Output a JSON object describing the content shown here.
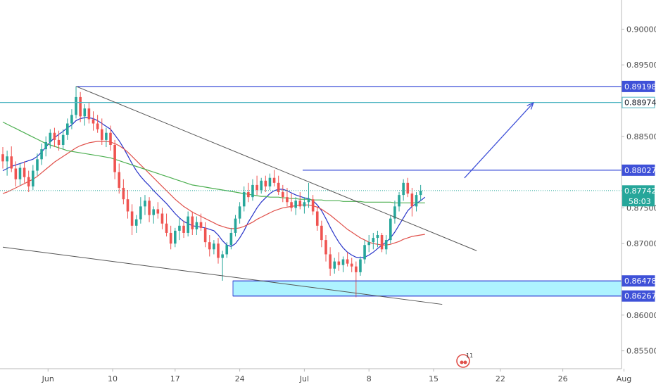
{
  "chart_data": {
    "type": "candlestick",
    "instrument_note": "",
    "x_axis": {
      "labels": [
        "Jun",
        "10",
        "17",
        "24",
        "Jul",
        "8",
        "15",
        "22",
        "26",
        "Aug"
      ]
    },
    "y_axis": {
      "ylim": [
        0.8525,
        0.9025
      ],
      "ticks": [
        "0.90000",
        "0.89500",
        "0.88500",
        "0.87500",
        "0.87000",
        "0.86000",
        "0.85500"
      ]
    },
    "levels": [
      {
        "name": "resistance-high",
        "value": "0.89198",
        "num": 0.89198,
        "color": "#3f51d8",
        "label_bg": "#3f51d8"
      },
      {
        "name": "resistance-target",
        "value": "0.88974",
        "num": 0.88974,
        "color": "#4fb6c2",
        "label_bg": "#ffffff"
      },
      {
        "name": "resistance-mid",
        "value": "0.88027",
        "num": 0.88027,
        "color": "#3f51d8",
        "label_bg": "#3f51d8"
      },
      {
        "name": "support-top",
        "value": "0.86478",
        "num": 0.86478,
        "color": "#3f51d8",
        "label_bg": "#3f51d8"
      },
      {
        "name": "support-bottom",
        "value": "0.86267",
        "num": 0.86267,
        "color": "#3f51d8",
        "label_bg": "#3f51d8"
      }
    ],
    "current_price": {
      "value": "0.87742",
      "num": 0.87742,
      "countdown": "58:03",
      "color": "#26a69a"
    },
    "support_zone": {
      "top": 0.86478,
      "bottom": 0.86267,
      "fill": "#aef3ff"
    },
    "candles_ohlc": [
      [
        0.8825,
        0.8835,
        0.8805,
        0.8815
      ],
      [
        0.8815,
        0.883,
        0.8795,
        0.8822
      ],
      [
        0.8822,
        0.8836,
        0.88,
        0.8805
      ],
      [
        0.8805,
        0.8815,
        0.878,
        0.879
      ],
      [
        0.879,
        0.8812,
        0.8782,
        0.8806
      ],
      [
        0.8806,
        0.8815,
        0.8785,
        0.8793
      ],
      [
        0.8793,
        0.8802,
        0.8772,
        0.878
      ],
      [
        0.878,
        0.881,
        0.8775,
        0.8802
      ],
      [
        0.8802,
        0.8826,
        0.8795,
        0.8818
      ],
      [
        0.8818,
        0.884,
        0.881,
        0.8832
      ],
      [
        0.8832,
        0.885,
        0.8822,
        0.8842
      ],
      [
        0.8842,
        0.886,
        0.8833,
        0.8855
      ],
      [
        0.8855,
        0.8862,
        0.8835,
        0.8845
      ],
      [
        0.8845,
        0.8858,
        0.883,
        0.8838
      ],
      [
        0.8838,
        0.886,
        0.8832,
        0.8852
      ],
      [
        0.8852,
        0.8875,
        0.8845,
        0.8868
      ],
      [
        0.8868,
        0.8888,
        0.886,
        0.888
      ],
      [
        0.888,
        0.892,
        0.8875,
        0.8905
      ],
      [
        0.8905,
        0.8912,
        0.887,
        0.8878
      ],
      [
        0.8878,
        0.8895,
        0.8865,
        0.8889
      ],
      [
        0.8889,
        0.8898,
        0.8868,
        0.8874
      ],
      [
        0.8874,
        0.8885,
        0.8858,
        0.8868
      ],
      [
        0.8868,
        0.888,
        0.8855,
        0.886
      ],
      [
        0.886,
        0.8875,
        0.8838,
        0.8845
      ],
      [
        0.8845,
        0.8862,
        0.8835,
        0.8855
      ],
      [
        0.8855,
        0.8865,
        0.883,
        0.8838
      ],
      [
        0.8838,
        0.8845,
        0.879,
        0.88
      ],
      [
        0.88,
        0.8812,
        0.877,
        0.8778
      ],
      [
        0.8778,
        0.879,
        0.8755,
        0.8762
      ],
      [
        0.8762,
        0.8775,
        0.8735,
        0.8745
      ],
      [
        0.8745,
        0.8755,
        0.8712,
        0.8725
      ],
      [
        0.8725,
        0.874,
        0.8715,
        0.8734
      ],
      [
        0.8734,
        0.8765,
        0.8728,
        0.8752
      ],
      [
        0.8752,
        0.8768,
        0.874,
        0.876
      ],
      [
        0.876,
        0.8765,
        0.873,
        0.874
      ],
      [
        0.874,
        0.8752,
        0.8728,
        0.8748
      ],
      [
        0.8748,
        0.8758,
        0.8735,
        0.8742
      ],
      [
        0.8742,
        0.875,
        0.872,
        0.8728
      ],
      [
        0.8728,
        0.8742,
        0.871,
        0.8715
      ],
      [
        0.8715,
        0.8725,
        0.8692,
        0.87
      ],
      [
        0.87,
        0.8722,
        0.8695,
        0.8718
      ],
      [
        0.8718,
        0.8735,
        0.8705,
        0.8725
      ],
      [
        0.8725,
        0.8732,
        0.8708,
        0.8715
      ],
      [
        0.8715,
        0.8745,
        0.871,
        0.8738
      ],
      [
        0.8738,
        0.8745,
        0.8712,
        0.872
      ],
      [
        0.872,
        0.8738,
        0.8712,
        0.873
      ],
      [
        0.873,
        0.8742,
        0.8718,
        0.8722
      ],
      [
        0.8722,
        0.873,
        0.8695,
        0.8702
      ],
      [
        0.8702,
        0.8712,
        0.8682,
        0.8692
      ],
      [
        0.8692,
        0.8705,
        0.8685,
        0.87
      ],
      [
        0.87,
        0.8708,
        0.8672,
        0.868
      ],
      [
        0.868,
        0.869,
        0.8648,
        0.8685
      ],
      [
        0.8685,
        0.8702,
        0.868,
        0.8698
      ],
      [
        0.8698,
        0.8722,
        0.8692,
        0.8715
      ],
      [
        0.8715,
        0.874,
        0.871,
        0.8735
      ],
      [
        0.8735,
        0.8758,
        0.8728,
        0.8752
      ],
      [
        0.8752,
        0.878,
        0.8745,
        0.8772
      ],
      [
        0.8772,
        0.8785,
        0.8758,
        0.8765
      ],
      [
        0.8765,
        0.879,
        0.876,
        0.8782
      ],
      [
        0.8782,
        0.8795,
        0.8768,
        0.8775
      ],
      [
        0.8775,
        0.8792,
        0.877,
        0.8788
      ],
      [
        0.8788,
        0.8795,
        0.8772,
        0.878
      ],
      [
        0.878,
        0.8798,
        0.8775,
        0.8792
      ],
      [
        0.8792,
        0.8803,
        0.878,
        0.8785
      ],
      [
        0.8785,
        0.8795,
        0.8768,
        0.8772
      ],
      [
        0.8772,
        0.8782,
        0.8758,
        0.8765
      ],
      [
        0.8765,
        0.8778,
        0.8752,
        0.8758
      ],
      [
        0.8758,
        0.877,
        0.8745,
        0.875
      ],
      [
        0.875,
        0.8765,
        0.874,
        0.876
      ],
      [
        0.876,
        0.8772,
        0.8748,
        0.8752
      ],
      [
        0.8752,
        0.8765,
        0.8742,
        0.8758
      ],
      [
        0.8758,
        0.8785,
        0.875,
        0.8762
      ],
      [
        0.8762,
        0.8768,
        0.874,
        0.8745
      ],
      [
        0.8745,
        0.8752,
        0.8718,
        0.8725
      ],
      [
        0.8725,
        0.8732,
        0.8695,
        0.8705
      ],
      [
        0.8705,
        0.8712,
        0.8675,
        0.8685
      ],
      [
        0.8685,
        0.8695,
        0.8655,
        0.8665
      ],
      [
        0.8665,
        0.868,
        0.8658,
        0.8675
      ],
      [
        0.8675,
        0.8688,
        0.8662,
        0.867
      ],
      [
        0.867,
        0.8682,
        0.866,
        0.8678
      ],
      [
        0.8678,
        0.8688,
        0.8668,
        0.8672
      ],
      [
        0.8672,
        0.868,
        0.866,
        0.8668
      ],
      [
        0.8668,
        0.8675,
        0.8625,
        0.866
      ],
      [
        0.866,
        0.8682,
        0.8655,
        0.8678
      ],
      [
        0.8678,
        0.8705,
        0.8672,
        0.8698
      ],
      [
        0.8698,
        0.8712,
        0.8688,
        0.8702
      ],
      [
        0.8702,
        0.8715,
        0.8692,
        0.8708
      ],
      [
        0.8708,
        0.8718,
        0.8695,
        0.8712
      ],
      [
        0.8712,
        0.8715,
        0.8688,
        0.8692
      ],
      [
        0.8692,
        0.8712,
        0.8685,
        0.8705
      ],
      [
        0.8705,
        0.874,
        0.87,
        0.8735
      ],
      [
        0.8735,
        0.876,
        0.8728,
        0.8752
      ],
      [
        0.8752,
        0.8772,
        0.8745,
        0.8768
      ],
      [
        0.8768,
        0.879,
        0.876,
        0.8785
      ],
      [
        0.8785,
        0.8792,
        0.8765,
        0.877
      ],
      [
        0.877,
        0.8778,
        0.8738,
        0.8752
      ],
      [
        0.8752,
        0.8772,
        0.8745,
        0.8768
      ],
      [
        0.8768,
        0.8782,
        0.876,
        0.8774
      ]
    ],
    "moving_averages": [
      {
        "name": "",
        "color": "#2632c8",
        "values": [
          0.8802,
          0.8805,
          0.8808,
          0.881,
          0.8812,
          0.8814,
          0.8816,
          0.8818,
          0.8822,
          0.8828,
          0.8835,
          0.8842,
          0.8848,
          0.8853,
          0.8857,
          0.8862,
          0.8866,
          0.8872,
          0.8875,
          0.8876,
          0.8876,
          0.8875,
          0.8872,
          0.8868,
          0.8864,
          0.886,
          0.8852,
          0.8844,
          0.8834,
          0.8823,
          0.8812,
          0.8802,
          0.8794,
          0.8787,
          0.8781,
          0.8774,
          0.8768,
          0.8762,
          0.8756,
          0.8749,
          0.8742,
          0.8736,
          0.8731,
          0.8728,
          0.8725,
          0.8724,
          0.8723,
          0.8722,
          0.872,
          0.8718,
          0.8712,
          0.8704,
          0.8698,
          0.8696,
          0.87,
          0.8708,
          0.8718,
          0.873,
          0.874,
          0.875,
          0.8758,
          0.8764,
          0.877,
          0.8774,
          0.8776,
          0.8776,
          0.8774,
          0.8771,
          0.8768,
          0.8766,
          0.8764,
          0.8763,
          0.876,
          0.8754,
          0.8746,
          0.8735,
          0.8723,
          0.8712,
          0.8702,
          0.8694,
          0.8688,
          0.8684,
          0.8681,
          0.868,
          0.8681,
          0.8684,
          0.8688,
          0.8693,
          0.8698,
          0.8702,
          0.8708,
          0.8716,
          0.8726,
          0.8736,
          0.8746,
          0.8752,
          0.8756,
          0.876,
          0.8765
        ]
      },
      {
        "name": "",
        "color": "#e0504a",
        "values": [
          0.877,
          0.8772,
          0.8775,
          0.8778,
          0.8781,
          0.8784,
          0.8787,
          0.879,
          0.8794,
          0.8799,
          0.8804,
          0.8809,
          0.8814,
          0.8818,
          0.8822,
          0.8826,
          0.883,
          0.8834,
          0.8837,
          0.8839,
          0.8841,
          0.8842,
          0.8843,
          0.8843,
          0.8843,
          0.8842,
          0.884,
          0.8837,
          0.8833,
          0.8828,
          0.8822,
          0.8816,
          0.881,
          0.8804,
          0.8798,
          0.8792,
          0.8786,
          0.878,
          0.8774,
          0.8768,
          0.8762,
          0.8757,
          0.8752,
          0.8748,
          0.8744,
          0.8741,
          0.8738,
          0.8735,
          0.8732,
          0.8729,
          0.8726,
          0.8724,
          0.8722,
          0.8721,
          0.8721,
          0.8722,
          0.8724,
          0.8727,
          0.873,
          0.8734,
          0.8737,
          0.874,
          0.8743,
          0.8746,
          0.8748,
          0.875,
          0.8751,
          0.8752,
          0.8753,
          0.8754,
          0.8754,
          0.8754,
          0.8753,
          0.8751,
          0.8748,
          0.8744,
          0.874,
          0.8735,
          0.873,
          0.8725,
          0.872,
          0.8716,
          0.8712,
          0.8708,
          0.8705,
          0.8702,
          0.87,
          0.8699,
          0.8698,
          0.8698,
          0.8699,
          0.8701,
          0.8703,
          0.8706,
          0.8708,
          0.871,
          0.8711,
          0.8712,
          0.8713
        ]
      },
      {
        "name": "",
        "color": "#4caf50",
        "values": [
          0.887,
          0.8867,
          0.8864,
          0.8861,
          0.8858,
          0.8855,
          0.8852,
          0.8849,
          0.8846,
          0.8843,
          0.884,
          0.8838,
          0.8836,
          0.8834,
          0.8832,
          0.883,
          0.8829,
          0.8828,
          0.8827,
          0.8826,
          0.8825,
          0.8824,
          0.8823,
          0.8822,
          0.8821,
          0.882,
          0.8818,
          0.8816,
          0.8814,
          0.8812,
          0.881,
          0.8808,
          0.8806,
          0.8804,
          0.8802,
          0.88,
          0.8798,
          0.8796,
          0.8794,
          0.8792,
          0.879,
          0.8788,
          0.8786,
          0.8784,
          0.8782,
          0.8781,
          0.878,
          0.8779,
          0.8778,
          0.8777,
          0.8776,
          0.8775,
          0.8774,
          0.8773,
          0.8772,
          0.8771,
          0.877,
          0.8769,
          0.8768,
          0.8767,
          0.8766,
          0.8766,
          0.8765,
          0.8765,
          0.8765,
          0.8764,
          0.8764,
          0.8763,
          0.8763,
          0.8762,
          0.8762,
          0.8762,
          0.8761,
          0.8761,
          0.8761,
          0.876,
          0.876,
          0.876,
          0.876,
          0.8759,
          0.8759,
          0.8759,
          0.8759,
          0.8759,
          0.8758,
          0.8758,
          0.8758,
          0.8758,
          0.8758,
          0.8758,
          0.8758,
          0.8757,
          0.8757,
          0.8757,
          0.8757,
          0.8757,
          0.8757,
          0.8757,
          0.8757
        ]
      }
    ],
    "trendlines": [
      {
        "name": "descending-resistance",
        "p1": [
          17,
          0.892
        ],
        "p2": [
          110,
          0.869
        ],
        "color": "#555555"
      },
      {
        "name": "lower-channel",
        "p1": [
          0,
          0.8695
        ],
        "p2": [
          102,
          0.8615
        ],
        "color": "#555555"
      }
    ],
    "projection_arrow": {
      "from": [
        99,
        0.8782
      ],
      "to": [
        115,
        0.8897
      ],
      "color": "#3f51d8"
    },
    "up_color": "#26a69a",
    "down_color": "#ef5350",
    "logo_badge": "11"
  }
}
